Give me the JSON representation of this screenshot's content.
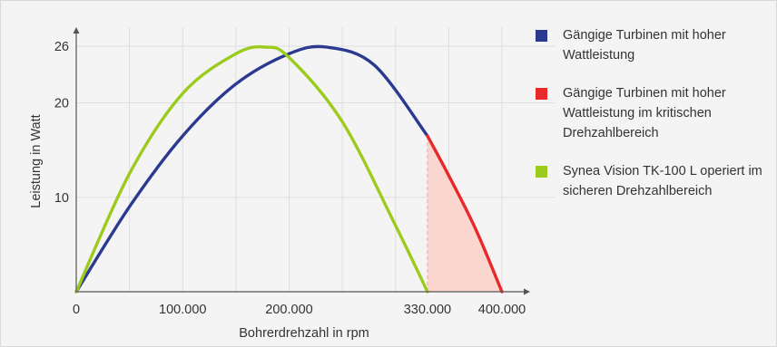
{
  "chart_data": {
    "type": "line",
    "xlabel": "Bohrerdrehzahl in rpm",
    "ylabel": "Leistung in Watt",
    "xlim": [
      0,
      450000
    ],
    "ylim": [
      0,
      28
    ],
    "x_ticks": [
      {
        "value": 0,
        "label": "0"
      },
      {
        "value": 100000,
        "label": "100.000"
      },
      {
        "value": 200000,
        "label": "200.000"
      },
      {
        "value": 330000,
        "label": "330.000"
      },
      {
        "value": 400000,
        "label": "400.000"
      }
    ],
    "y_ticks": [
      {
        "value": 10,
        "label": "10"
      },
      {
        "value": 20,
        "label": "20"
      },
      {
        "value": 26,
        "label": "26"
      }
    ],
    "x_gridlines": [
      0,
      50000,
      100000,
      150000,
      200000,
      250000,
      300000,
      350000,
      400000
    ],
    "y_gridlines": [
      10,
      20,
      26
    ],
    "grid": true,
    "legend_position": "right",
    "critical_threshold_x": 330000,
    "series": [
      {
        "name": "Gängige Turbinen mit hoher Wattleistung",
        "color": "#2b3990",
        "x": [
          0,
          50000,
          100000,
          150000,
          200000,
          235000,
          280000,
          330000
        ],
        "y": [
          0,
          9,
          16.5,
          22,
          25.2,
          25.9,
          24,
          16.5
        ]
      },
      {
        "name": "Gängige Turbinen mit hoher Wattleistung im kritischen Drehzahlbereich",
        "color": "#e8282b",
        "x": [
          330000,
          350000,
          375000,
          400000
        ],
        "y": [
          16.5,
          12.3,
          6.7,
          0
        ]
      },
      {
        "name": "Synea Vision TK-100 L operiert im sicheren Drehzahlbereich",
        "color": "#9bcb1c",
        "x": [
          0,
          50000,
          100000,
          150000,
          178000,
          200000,
          250000,
          300000,
          330000
        ],
        "y": [
          0,
          12.5,
          21,
          25.2,
          25.9,
          24.8,
          18,
          7,
          0
        ]
      }
    ]
  }
}
